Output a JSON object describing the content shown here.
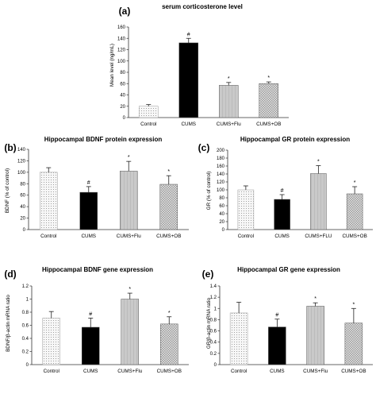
{
  "colors": {
    "black": "#000000",
    "light": "#f6f6f6",
    "gray": "#bdbdbd",
    "check": "#9a9a9a",
    "axis": "#333333"
  },
  "chart_data": [
    {
      "panel": "(a)",
      "type": "bar",
      "title": "serum corticosterone level",
      "ylabel": "Mean level (ng/mL)",
      "xlabel": "",
      "categories": [
        "Control",
        "CUMS",
        "CUMS+Flu",
        "CUMS+OB"
      ],
      "values": [
        20,
        132,
        57,
        60
      ],
      "errors": [
        3,
        8,
        5,
        3
      ],
      "markers": [
        "",
        "#",
        "*",
        "*"
      ],
      "patterns": [
        "dots",
        "solid",
        "light",
        "check"
      ],
      "ylim": [
        0,
        160
      ],
      "yticks": [
        "0",
        "20",
        "40",
        "60",
        "80",
        "100",
        "120",
        "140",
        "160"
      ],
      "grid": false,
      "legend": false
    },
    {
      "panel": "(b)",
      "type": "bar",
      "title": "Hippocampal BDNF protein expression",
      "ylabel": "BDNF (% of control)",
      "xlabel": "",
      "categories": [
        "Control",
        "CUMS",
        "CUMS+Flu",
        "CUMS+OB"
      ],
      "values": [
        100,
        65,
        102,
        79
      ],
      "errors": [
        8,
        10,
        17,
        15
      ],
      "markers": [
        "",
        "#",
        "*",
        "*"
      ],
      "patterns": [
        "dots",
        "solid",
        "light",
        "check"
      ],
      "ylim": [
        0,
        140
      ],
      "yticks": [
        "0",
        "20",
        "40",
        "60",
        "80",
        "100",
        "120",
        "140"
      ],
      "grid": false,
      "legend": false
    },
    {
      "panel": "(c)",
      "type": "bar",
      "title": "Hippocampal GR protein expression",
      "ylabel": "GR (% of control)",
      "xlabel": "",
      "categories": [
        "Control",
        "CUMS",
        "CUMS+FLU",
        "CUMS+OB"
      ],
      "values": [
        100,
        76,
        141,
        90
      ],
      "errors": [
        10,
        12,
        20,
        18
      ],
      "markers": [
        "",
        "#",
        "*",
        "*"
      ],
      "patterns": [
        "dots",
        "solid",
        "light",
        "check"
      ],
      "ylim": [
        0,
        200
      ],
      "yticks": [
        "0",
        "20",
        "40",
        "60",
        "80",
        "100",
        "120",
        "140",
        "160",
        "180",
        "200"
      ],
      "grid": false,
      "legend": false
    },
    {
      "panel": "(d)",
      "type": "bar",
      "title": "Hippocampal BDNF gene expression",
      "ylabel": "BDNF/β-actin mRNA ratio",
      "xlabel": "",
      "categories": [
        "Control",
        "CUMS",
        "CUMS+Flu",
        "CUMS+OB"
      ],
      "values": [
        0.71,
        0.57,
        1.0,
        0.62
      ],
      "errors": [
        0.1,
        0.14,
        0.09,
        0.11
      ],
      "markers": [
        "",
        "#",
        "*",
        "*"
      ],
      "patterns": [
        "dots",
        "solid",
        "light",
        "check"
      ],
      "ylim": [
        0,
        1.2
      ],
      "yticks": [
        "0",
        "0.2",
        "0.4",
        "0.6",
        "0.8",
        "1",
        "1.2"
      ],
      "grid": false,
      "legend": false
    },
    {
      "panel": "(e)",
      "type": "bar",
      "title": "Hippocampal GR gene expression",
      "ylabel": "GR/β-actin mRNA ratio",
      "xlabel": "",
      "categories": [
        "Control",
        "CUMS",
        "CUMS+Flu",
        "CUMS+OB"
      ],
      "values": [
        0.92,
        0.67,
        1.04,
        0.74
      ],
      "errors": [
        0.19,
        0.14,
        0.06,
        0.26
      ],
      "markers": [
        "",
        "#",
        "*",
        "*"
      ],
      "patterns": [
        "dots",
        "solid",
        "light",
        "check"
      ],
      "ylim": [
        0,
        1.4
      ],
      "yticks": [
        "0",
        "0.2",
        "0.4",
        "0.6",
        "0.8",
        "1",
        "1.2",
        "1.4"
      ],
      "grid": false,
      "legend": false
    }
  ]
}
